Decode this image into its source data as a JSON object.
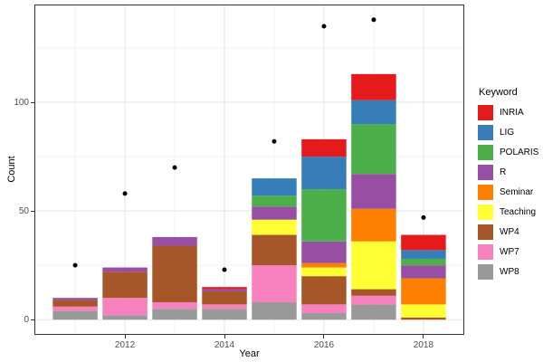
{
  "axes": {
    "x_label": "Year",
    "y_label": "Count",
    "x_tick_labels": [
      "2012",
      "2014",
      "2016",
      "2018"
    ],
    "y_tick_labels": [
      "0",
      "50",
      "100"
    ]
  },
  "chart_data": {
    "type": "bar",
    "stacked": true,
    "xlabel": "Year",
    "ylabel": "Count",
    "legend_title": "Keyword",
    "legend_position": "right",
    "grid": true,
    "categories": [
      2011,
      2012,
      2013,
      2014,
      2015,
      2016,
      2017,
      2018
    ],
    "series": [
      {
        "name": "INRIA",
        "color": "#e41a1c",
        "values": [
          0,
          0,
          0,
          1,
          0,
          8,
          12,
          7
        ]
      },
      {
        "name": "LIG",
        "color": "#377eb8",
        "values": [
          0,
          0,
          0,
          0,
          8,
          15,
          11,
          4
        ]
      },
      {
        "name": "POLARIS",
        "color": "#4daf4a",
        "values": [
          0,
          0,
          0,
          0,
          5,
          24,
          23,
          3
        ]
      },
      {
        "name": "R",
        "color": "#984ea3",
        "values": [
          1,
          2,
          4,
          1,
          6,
          10,
          16,
          6
        ]
      },
      {
        "name": "Seminar",
        "color": "#ff7f00",
        "values": [
          0,
          0,
          0,
          0,
          0,
          2,
          15,
          12
        ]
      },
      {
        "name": "Teaching",
        "color": "#ffff33",
        "values": [
          0,
          0,
          0,
          0,
          7,
          4,
          22,
          6
        ]
      },
      {
        "name": "WP4",
        "color": "#a65628",
        "values": [
          3,
          12,
          26,
          6,
          14,
          13,
          3,
          1
        ]
      },
      {
        "name": "WP7",
        "color": "#f781bf",
        "values": [
          2,
          8,
          3,
          2,
          17,
          4,
          4,
          0
        ]
      },
      {
        "name": "WP8",
        "color": "#999999",
        "values": [
          4,
          2,
          5,
          5,
          8,
          3,
          7,
          0
        ]
      }
    ],
    "bar_totals": [
      10,
      24,
      38,
      15,
      65,
      83,
      113,
      39
    ],
    "points": {
      "name": "totals-dots",
      "color": "#000000",
      "values": [
        25,
        58,
        70,
        23,
        82,
        135,
        138,
        47
      ]
    },
    "x_ticks": [
      {
        "label": "2012",
        "value": 2012
      },
      {
        "label": "2014",
        "value": 2014
      },
      {
        "label": "2016",
        "value": 2016
      },
      {
        "label": "2018",
        "value": 2018
      }
    ],
    "y_ticks": [
      {
        "label": "0",
        "value": 0
      },
      {
        "label": "50",
        "value": 50
      },
      {
        "label": "100",
        "value": 100
      }
    ],
    "x_minor": [
      2011,
      2013,
      2015,
      2017
    ],
    "y_minor": [
      25,
      75,
      125
    ],
    "xlim": [
      2010.18,
      2018.82
    ],
    "ylim": [
      -7,
      145
    ],
    "grid_major_color": "#e3e3e3",
    "grid_minor_color": "#f1f1f1",
    "panel_border_color": "#333333",
    "tick_label_color": "#4d4d4d"
  }
}
